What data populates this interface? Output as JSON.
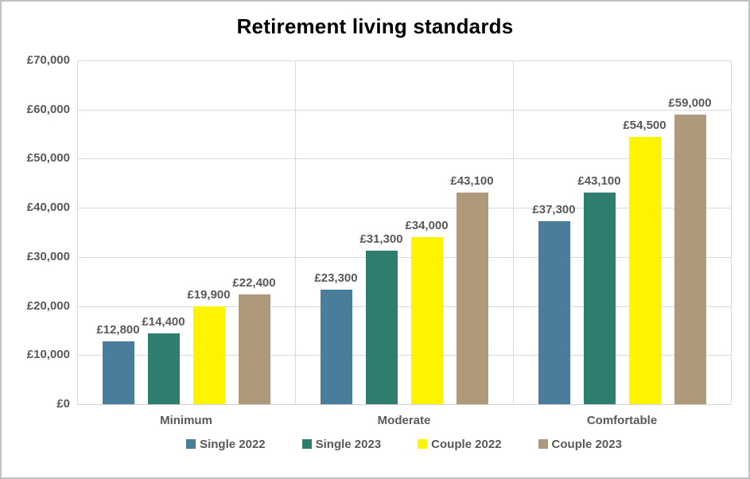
{
  "chart_data": {
    "type": "bar",
    "title": "Retirement living standards",
    "categories": [
      "Minimum",
      "Moderate",
      "Comfortable"
    ],
    "series": [
      {
        "name": "Single 2022",
        "color": "#4A7D9C",
        "values": [
          12800,
          23300,
          37300
        ],
        "labels": [
          "£12,800",
          "£23,300",
          "£37,300"
        ]
      },
      {
        "name": "Single 2023",
        "color": "#2E7D6E",
        "values": [
          14400,
          31300,
          43100
        ],
        "labels": [
          "£14,400",
          "£31,300",
          "£43,100"
        ]
      },
      {
        "name": "Couple 2022",
        "color": "#FEF400",
        "values": [
          19900,
          34000,
          54500
        ],
        "labels": [
          "£19,900",
          "£34,000",
          "£54,500"
        ]
      },
      {
        "name": "Couple 2023",
        "color": "#AE9A7B",
        "values": [
          22400,
          43100,
          59000
        ],
        "labels": [
          "£22,400",
          "£43,100",
          "£59,000"
        ]
      }
    ],
    "y_axis": {
      "min": 0,
      "max": 70000,
      "step": 10000,
      "tick_labels": [
        "£0",
        "£10,000",
        "£20,000",
        "£30,000",
        "£40,000",
        "£50,000",
        "£60,000",
        "£70,000"
      ]
    },
    "legend": {
      "position": "bottom",
      "entries": [
        "Single 2022",
        "Single 2023",
        "Couple 2022",
        "Couple 2023"
      ]
    },
    "grid": true,
    "colors": {
      "title_text": "#000000",
      "axis_text": "#595959",
      "data_label_text": "#595959",
      "gridline": "#D9D9D9",
      "frame_border": "#C2C2C2",
      "background": "#FFFFFF"
    }
  }
}
